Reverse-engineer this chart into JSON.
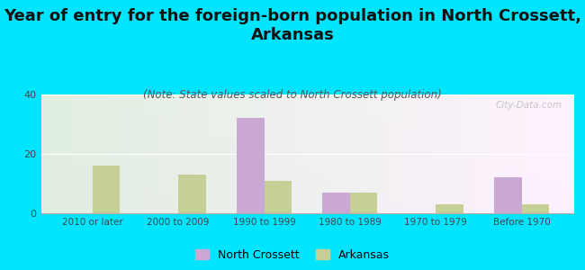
{
  "title": "Year of entry for the foreign-born population in North Crossett,\nArkansas",
  "subtitle": "(Note: State values scaled to North Crossett population)",
  "categories": [
    "2010 or later",
    "2000 to 2009",
    "1990 to 1999",
    "1980 to 1989",
    "1970 to 1979",
    "Before 1970"
  ],
  "north_crossett": [
    0,
    0,
    32,
    7,
    0,
    12
  ],
  "arkansas": [
    16,
    13,
    11,
    7,
    3,
    3
  ],
  "bar_color_nc": "#c9a8d4",
  "bar_color_ar": "#c5cf96",
  "ylim": [
    0,
    40
  ],
  "yticks": [
    0,
    20,
    40
  ],
  "bg_color_outer": "#00e5ff",
  "title_fontsize": 13,
  "subtitle_fontsize": 8.5,
  "watermark": "City-Data.com"
}
